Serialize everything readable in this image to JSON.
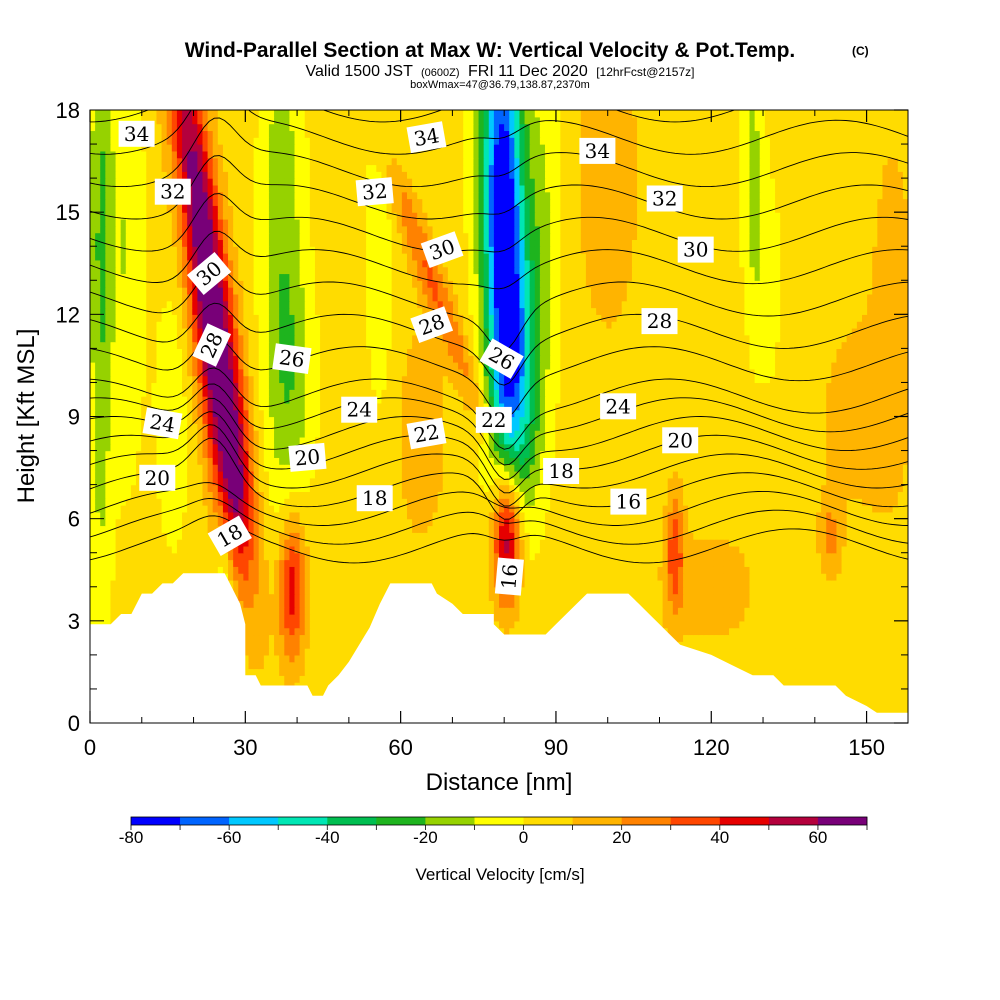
{
  "chart_data": {
    "type": "heatmap",
    "title": "Wind-Parallel Section at Max W: Vertical Velocity & Pot.Temp.",
    "title_units": "(C)",
    "subtitle_prefix": "Valid 1500 JST",
    "subtitle_z": "(0600Z)",
    "subtitle_date": "FRI 11 Dec 2020",
    "subtitle_fcst": "[12hrFcst@2157z]",
    "subtitle2": "boxWmax=47@36.79,138.87,2370m",
    "xlabel": "Distance [nm]",
    "ylabel": "Height [Kft MSL]",
    "xlim": [
      0,
      158
    ],
    "ylim": [
      0,
      18
    ],
    "xticks": [
      0,
      30,
      60,
      90,
      120,
      150
    ],
    "yticks": [
      0,
      3,
      6,
      9,
      12,
      15,
      18
    ],
    "colorbar": {
      "label": "Vertical Velocity [cm/s]",
      "ticks": [
        -80,
        -60,
        -40,
        -20,
        0,
        20,
        40,
        60
      ],
      "range": [
        -80,
        70
      ],
      "colors": [
        "#0000ff",
        "#0064ff",
        "#00c8ff",
        "#00e6b4",
        "#00be50",
        "#1eb41e",
        "#96d200",
        "#ffff00",
        "#ffdc00",
        "#ffb400",
        "#ff8200",
        "#ff4600",
        "#e60000",
        "#b4003c",
        "#780078"
      ]
    },
    "terrain_kft": [
      [
        0,
        2.9
      ],
      [
        4,
        2.9
      ],
      [
        6,
        3.2
      ],
      [
        8,
        3.2
      ],
      [
        10,
        3.8
      ],
      [
        12,
        3.8
      ],
      [
        14,
        4.1
      ],
      [
        16,
        4.1
      ],
      [
        18,
        4.4
      ],
      [
        26,
        4.4
      ],
      [
        27,
        4.1
      ],
      [
        29,
        3.5
      ],
      [
        30,
        2.9
      ],
      [
        30,
        1.4
      ],
      [
        32,
        1.4
      ],
      [
        33,
        1.1
      ],
      [
        42,
        1.1
      ],
      [
        43,
        0.8
      ],
      [
        45,
        0.8
      ],
      [
        46,
        1.1
      ],
      [
        48,
        1.4
      ],
      [
        50,
        1.8
      ],
      [
        52,
        2.3
      ],
      [
        54,
        2.8
      ],
      [
        56,
        3.5
      ],
      [
        58,
        4.1
      ],
      [
        66,
        4.1
      ],
      [
        67,
        3.8
      ],
      [
        70,
        3.5
      ],
      [
        72,
        3.2
      ],
      [
        78,
        3.2
      ],
      [
        78,
        2.9
      ],
      [
        80,
        2.6
      ],
      [
        86,
        2.6
      ],
      [
        88,
        2.6
      ],
      [
        90,
        2.9
      ],
      [
        92,
        3.2
      ],
      [
        94,
        3.5
      ],
      [
        96,
        3.8
      ],
      [
        104,
        3.8
      ],
      [
        106,
        3.5
      ],
      [
        108,
        3.2
      ],
      [
        110,
        2.9
      ],
      [
        112,
        2.6
      ],
      [
        114,
        2.3
      ],
      [
        116,
        2.2
      ],
      [
        120,
        2.0
      ],
      [
        124,
        1.7
      ],
      [
        128,
        1.4
      ],
      [
        132,
        1.4
      ],
      [
        134,
        1.1
      ],
      [
        144,
        1.1
      ],
      [
        146,
        0.8
      ],
      [
        150,
        0.5
      ],
      [
        152,
        0.3
      ],
      [
        158,
        0.3
      ]
    ],
    "w_features": [
      {
        "x": 2,
        "y": 14,
        "sx": 1.6,
        "sy": 8,
        "amp": -25
      },
      {
        "x": 7,
        "y": 14,
        "sx": 2.5,
        "sy": 5,
        "amp": -15
      },
      {
        "x": 16,
        "y": 9,
        "sx": 2.5,
        "sy": 3,
        "amp": -12
      },
      {
        "x": 22,
        "y": 14.5,
        "sx": 2.6,
        "sy": 5,
        "amp": 60,
        "tilt": -0.12
      },
      {
        "x": 25,
        "y": 9,
        "sx": 2.6,
        "sy": 3.5,
        "amp": 40,
        "tilt": -0.12
      },
      {
        "x": 27,
        "y": 6.5,
        "sx": 2.2,
        "sy": 1.8,
        "amp": 25
      },
      {
        "x": 26,
        "y": 4.4,
        "sx": 1.5,
        "sy": 2.5,
        "amp": -25
      },
      {
        "x": 39,
        "y": 4,
        "sx": 1.8,
        "sy": 1.5,
        "amp": 45
      },
      {
        "x": 37,
        "y": 14,
        "sx": 3,
        "sy": 6,
        "amp": -22
      },
      {
        "x": 40,
        "y": 10,
        "sx": 3,
        "sy": 2.5,
        "amp": -12
      },
      {
        "x": 56,
        "y": 14.5,
        "sx": 2.2,
        "sy": 4,
        "amp": -12
      },
      {
        "x": 66,
        "y": 13,
        "sx": 2,
        "sy": 3,
        "amp": 25,
        "tilt": -0.3
      },
      {
        "x": 64,
        "y": 8.5,
        "sx": 3,
        "sy": 2,
        "amp": 15
      },
      {
        "x": 80,
        "y": 14,
        "sx": 2.6,
        "sy": 5,
        "amp": -70
      },
      {
        "x": 83,
        "y": 10,
        "sx": 3,
        "sy": 3,
        "amp": -40
      },
      {
        "x": 78,
        "y": 16.5,
        "sx": 3,
        "sy": 3,
        "amp": -25
      },
      {
        "x": 80.5,
        "y": 5.5,
        "sx": 2,
        "sy": 1.5,
        "amp": 70
      },
      {
        "x": 87,
        "y": 15,
        "sx": 3,
        "sy": 4,
        "amp": -15
      },
      {
        "x": 100,
        "y": 16,
        "sx": 4,
        "sy": 3,
        "amp": 14
      },
      {
        "x": 113,
        "y": 5,
        "sx": 1.2,
        "sy": 1.2,
        "amp": 30
      },
      {
        "x": 128,
        "y": 16,
        "sx": 1.5,
        "sy": 3,
        "amp": -18
      },
      {
        "x": 131,
        "y": 13,
        "sx": 2,
        "sy": 2.5,
        "amp": -10
      },
      {
        "x": 143,
        "y": 5.5,
        "sx": 1.5,
        "sy": 0.8,
        "amp": 18
      },
      {
        "x": 155,
        "y": 12,
        "sx": 3,
        "sy": 4,
        "amp": 10
      },
      {
        "x": 148,
        "y": 9,
        "sx": 5,
        "sy": 2,
        "amp": 10
      },
      {
        "x": 120,
        "y": 4,
        "sx": 8,
        "sy": 1.5,
        "amp": 8
      }
    ],
    "theta_levels": [
      16,
      17,
      18,
      19,
      20,
      21,
      22,
      23,
      24,
      25,
      26,
      27,
      28,
      29,
      30,
      31,
      32,
      33,
      34,
      35
    ],
    "contour_labels": [
      {
        "text": "34",
        "x": 9,
        "y": 17.3,
        "rot": 0
      },
      {
        "text": "32",
        "x": 16,
        "y": 15.6,
        "rot": 0
      },
      {
        "text": "30",
        "x": 23,
        "y": 13.2,
        "rot": -40
      },
      {
        "text": "28",
        "x": 23.5,
        "y": 11.1,
        "rot": -65
      },
      {
        "text": "24",
        "x": 14,
        "y": 8.8,
        "rot": 10
      },
      {
        "text": "20",
        "x": 13,
        "y": 7.2,
        "rot": 0
      },
      {
        "text": "18",
        "x": 27,
        "y": 5.5,
        "rot": -30
      },
      {
        "text": "26",
        "x": 39,
        "y": 10.7,
        "rot": 8
      },
      {
        "text": "24",
        "x": 52,
        "y": 9.2,
        "rot": 0
      },
      {
        "text": "20",
        "x": 42,
        "y": 7.8,
        "rot": -5
      },
      {
        "text": "18",
        "x": 55,
        "y": 6.6,
        "rot": 0
      },
      {
        "text": "34",
        "x": 65,
        "y": 17.2,
        "rot": -10
      },
      {
        "text": "32",
        "x": 55,
        "y": 15.6,
        "rot": -5
      },
      {
        "text": "30",
        "x": 68,
        "y": 13.9,
        "rot": -20
      },
      {
        "text": "28",
        "x": 66,
        "y": 11.7,
        "rot": -20
      },
      {
        "text": "22",
        "x": 65,
        "y": 8.5,
        "rot": -10
      },
      {
        "text": "22",
        "x": 78,
        "y": 8.9,
        "rot": 0
      },
      {
        "text": "26",
        "x": 79.5,
        "y": 10.7,
        "rot": 30
      },
      {
        "text": "18",
        "x": 91,
        "y": 7.4,
        "rot": 0
      },
      {
        "text": "16",
        "x": 81,
        "y": 4.3,
        "rot": -85
      },
      {
        "text": "34",
        "x": 98,
        "y": 16.8,
        "rot": 0
      },
      {
        "text": "32",
        "x": 111,
        "y": 15.4,
        "rot": 0
      },
      {
        "text": "30",
        "x": 117,
        "y": 13.9,
        "rot": 0
      },
      {
        "text": "28",
        "x": 110,
        "y": 11.8,
        "rot": 0
      },
      {
        "text": "24",
        "x": 102,
        "y": 9.3,
        "rot": 0
      },
      {
        "text": "20",
        "x": 114,
        "y": 8.3,
        "rot": 0
      },
      {
        "text": "16",
        "x": 104,
        "y": 6.5,
        "rot": 0
      }
    ]
  }
}
